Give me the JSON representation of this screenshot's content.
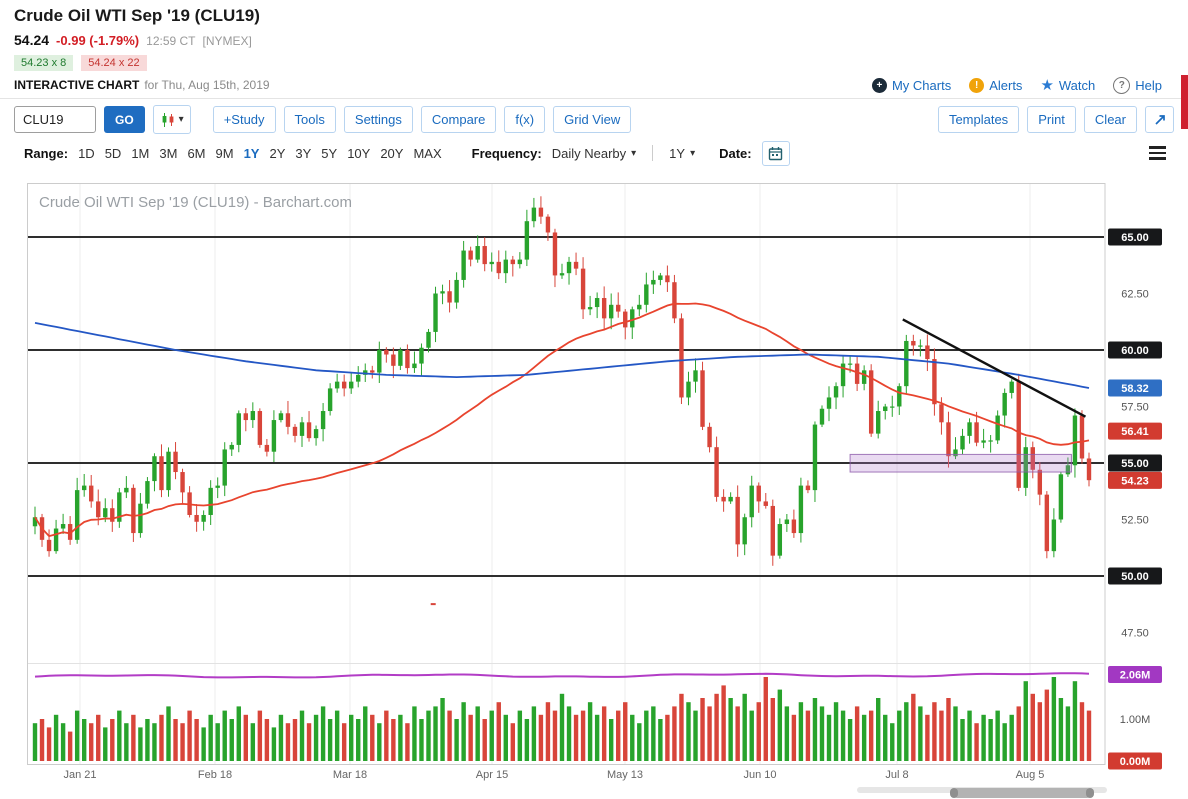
{
  "header": {
    "title": "Crude Oil WTI Sep '19 (CLU19)",
    "last_price": "54.24",
    "change": "-0.99 (-1.79%)",
    "time": "12:59 CT",
    "exchange": "[NYMEX]",
    "bid": "54.23 x 8",
    "ask": "54.24 x 22",
    "interactive_chart_label": "INTERACTIVE CHART",
    "date_label": "for Thu, Aug 15th, 2019",
    "links": {
      "my_charts": "My Charts",
      "alerts": "Alerts",
      "watch": "Watch",
      "help": "Help"
    }
  },
  "toolbar": {
    "symbol_value": "CLU19",
    "go_label": "GO",
    "buttons_left": [
      "+Study",
      "Tools",
      "Settings",
      "Compare",
      "f(x)",
      "Grid View"
    ],
    "buttons_right": [
      "Templates",
      "Print",
      "Clear"
    ]
  },
  "rangebar": {
    "range_label": "Range:",
    "ranges": [
      "1D",
      "5D",
      "1M",
      "3M",
      "6M",
      "9M",
      "1Y",
      "2Y",
      "3Y",
      "5Y",
      "10Y",
      "20Y",
      "MAX"
    ],
    "active_range": "1Y",
    "frequency_label": "Frequency:",
    "frequency_value": "Daily Nearby",
    "period_value": "1Y",
    "date_label": "Date:"
  },
  "colors": {
    "up": "#28a32c",
    "down": "#d8453a",
    "ma_fast": "#e8442e",
    "ma_slow": "#2457c5",
    "oi": "#b23cc6",
    "annotation": "#111111",
    "zone_fill": "rgba(176,122,204,0.28)",
    "zone_stroke": "rgba(140,90,170,0.8)"
  },
  "chart": {
    "axis": {
      "price_labels": [
        {
          "v": 65.0,
          "t": "65.00",
          "style": "black"
        },
        {
          "v": 62.5,
          "t": "62.50",
          "style": "plain"
        },
        {
          "v": 60.0,
          "t": "60.00",
          "style": "black"
        },
        {
          "v": 58.32,
          "t": "58.32",
          "style": "blue"
        },
        {
          "v": 57.5,
          "t": "57.50",
          "style": "plain"
        },
        {
          "v": 56.41,
          "t": "56.41",
          "style": "red"
        },
        {
          "v": 55.0,
          "t": "55.00",
          "style": "black"
        },
        {
          "v": 54.23,
          "t": "54.23",
          "style": "red"
        },
        {
          "v": 52.5,
          "t": "52.50",
          "style": "plain"
        },
        {
          "v": 50.0,
          "t": "50.00",
          "style": "black"
        },
        {
          "v": 47.5,
          "t": "47.50",
          "style": "plain"
        }
      ],
      "volume_labels": [
        {
          "v": 2.06,
          "t": "2.06M",
          "style": "purple"
        },
        {
          "v": 1.0,
          "t": "1.00M",
          "style": "plain"
        },
        {
          "v": 0.0,
          "t": "0.00M",
          "style": "red"
        }
      ]
    }
  },
  "chart_data": {
    "type": "candlestick",
    "title": "Crude Oil WTI Sep '19 (CLU19) - Barchart.com",
    "symbol": "CLU19",
    "ylim": [
      46.5,
      67.3
    ],
    "x_labels": [
      "Jan 21",
      "Feb 18",
      "Mar 18",
      "Apr 15",
      "May 13",
      "Jun 10",
      "Jul 8",
      "Aug 5"
    ],
    "closes": [
      52.6,
      51.6,
      51.1,
      52.1,
      52.3,
      51.6,
      53.8,
      54.0,
      53.3,
      52.6,
      53.0,
      52.4,
      53.7,
      53.9,
      51.9,
      53.2,
      54.2,
      55.3,
      53.8,
      55.5,
      54.6,
      53.7,
      52.7,
      52.4,
      52.7,
      53.9,
      54.0,
      55.6,
      55.8,
      57.2,
      56.9,
      57.3,
      55.8,
      55.5,
      56.9,
      57.2,
      56.6,
      56.2,
      56.8,
      56.1,
      56.5,
      57.3,
      58.3,
      58.6,
      58.3,
      58.6,
      58.9,
      59.1,
      59.0,
      60.0,
      59.8,
      59.3,
      60.0,
      59.2,
      59.4,
      60.1,
      60.8,
      62.5,
      62.6,
      62.1,
      63.1,
      64.4,
      64.0,
      64.6,
      63.8,
      63.9,
      63.4,
      64.0,
      63.8,
      64.0,
      65.7,
      66.3,
      65.9,
      65.2,
      63.3,
      63.4,
      63.9,
      63.6,
      61.8,
      61.9,
      62.3,
      61.4,
      62.0,
      61.7,
      61.0,
      61.8,
      62.0,
      62.9,
      63.1,
      63.3,
      63.0,
      61.4,
      57.9,
      58.6,
      59.1,
      56.6,
      55.7,
      53.5,
      53.3,
      53.5,
      51.4,
      52.6,
      54.0,
      53.3,
      53.1,
      50.9,
      52.3,
      52.5,
      51.9,
      54.0,
      53.8,
      56.7,
      57.4,
      57.9,
      58.4,
      59.4,
      59.4,
      58.5,
      59.1,
      56.3,
      57.3,
      57.5,
      57.5,
      58.4,
      60.4,
      60.2,
      60.2,
      59.6,
      57.6,
      56.8,
      55.3,
      55.6,
      56.2,
      56.8,
      55.9,
      56.0,
      56.0,
      57.1,
      58.1,
      58.6,
      53.9,
      55.7,
      54.7,
      53.6,
      51.1,
      52.5,
      54.5,
      54.9,
      57.1,
      55.2,
      54.24
    ],
    "volumes_m": [
      0.9,
      1.0,
      0.8,
      1.1,
      0.9,
      0.7,
      1.2,
      1.0,
      0.9,
      1.1,
      0.8,
      1.0,
      1.2,
      0.9,
      1.1,
      0.8,
      1.0,
      0.9,
      1.1,
      1.3,
      1.0,
      0.9,
      1.2,
      1.0,
      0.8,
      1.1,
      0.9,
      1.2,
      1.0,
      1.3,
      1.1,
      0.9,
      1.2,
      1.0,
      0.8,
      1.1,
      0.9,
      1.0,
      1.2,
      0.9,
      1.1,
      1.3,
      1.0,
      1.2,
      0.9,
      1.1,
      1.0,
      1.3,
      1.1,
      0.9,
      1.2,
      1.0,
      1.1,
      0.9,
      1.3,
      1.0,
      1.2,
      1.3,
      1.5,
      1.2,
      1.0,
      1.4,
      1.1,
      1.3,
      1.0,
      1.2,
      1.4,
      1.1,
      0.9,
      1.2,
      1.0,
      1.3,
      1.1,
      1.4,
      1.2,
      1.6,
      1.3,
      1.1,
      1.2,
      1.4,
      1.1,
      1.3,
      1.0,
      1.2,
      1.4,
      1.1,
      0.9,
      1.2,
      1.3,
      1.0,
      1.1,
      1.3,
      1.6,
      1.4,
      1.2,
      1.5,
      1.3,
      1.6,
      1.8,
      1.5,
      1.3,
      1.6,
      1.2,
      1.4,
      2.0,
      1.5,
      1.7,
      1.3,
      1.1,
      1.4,
      1.2,
      1.5,
      1.3,
      1.1,
      1.4,
      1.2,
      1.0,
      1.3,
      1.1,
      1.2,
      1.5,
      1.1,
      0.9,
      1.2,
      1.4,
      1.6,
      1.3,
      1.1,
      1.4,
      1.2,
      1.5,
      1.3,
      1.0,
      1.2,
      0.9,
      1.1,
      1.0,
      1.2,
      0.9,
      1.1,
      1.3,
      1.9,
      1.6,
      1.4,
      1.7,
      2.0,
      1.5,
      1.3,
      1.9,
      1.4,
      1.2
    ],
    "ma_slow_points": [
      61.2,
      60.6,
      60.0,
      59.5,
      59.1,
      58.9,
      58.8,
      58.9,
      59.2,
      59.5,
      59.7,
      59.8,
      59.7,
      59.4,
      58.9,
      58.32
    ],
    "overlay_values": {
      "ma_slow_last": "58.32",
      "ma_fast_last": "56.41",
      "last_trade": "54.23",
      "open_interest": "2.06M"
    },
    "horizontal_lines": [
      65,
      60,
      55,
      50
    ],
    "trendline": {
      "from_index": 123.5,
      "from_price": 61.35,
      "to_index": 149.5,
      "to_price": 57.05
    },
    "highlight_zone": {
      "from_index": 116,
      "to_index": 147.5,
      "price_top": 55.38,
      "price_bottom": 54.6
    },
    "stray_mark": {
      "index": 56.6,
      "price": 48.8
    }
  }
}
